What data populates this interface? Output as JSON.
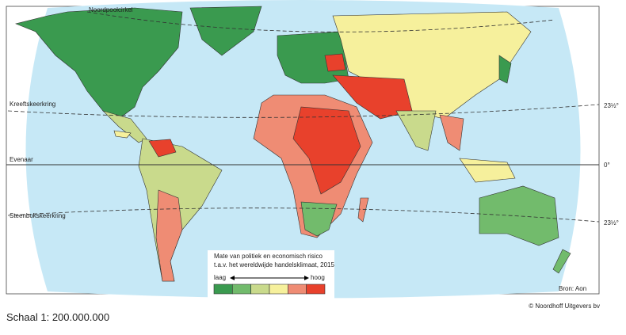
{
  "map": {
    "lines": {
      "arctic_circle": "Noordpoolcirkel",
      "tropic_cancer": "Kreeftskeerkring",
      "tropic_cancer_deg": "23½°",
      "equator": "Evenaar",
      "equator_deg": "0°",
      "tropic_capricorn": "Steenbokskeerkring",
      "tropic_capricorn_deg": "23½°"
    },
    "source": "Bron: Aon"
  },
  "legend": {
    "title": [
      "Mate van politiek en economisch risico",
      "t.a.v. het wereldwijde handelsklimaat, 2015"
    ],
    "low": "laag",
    "high": "hoog",
    "colors": [
      "#3a9a4f",
      "#72bb6c",
      "#c9da8c",
      "#f6f09c",
      "#ef8c74",
      "#e8412c"
    ]
  },
  "scale": "Schaal 1: 200.000.000",
  "copyright": "© Noordhoff Uitgevers bv"
}
